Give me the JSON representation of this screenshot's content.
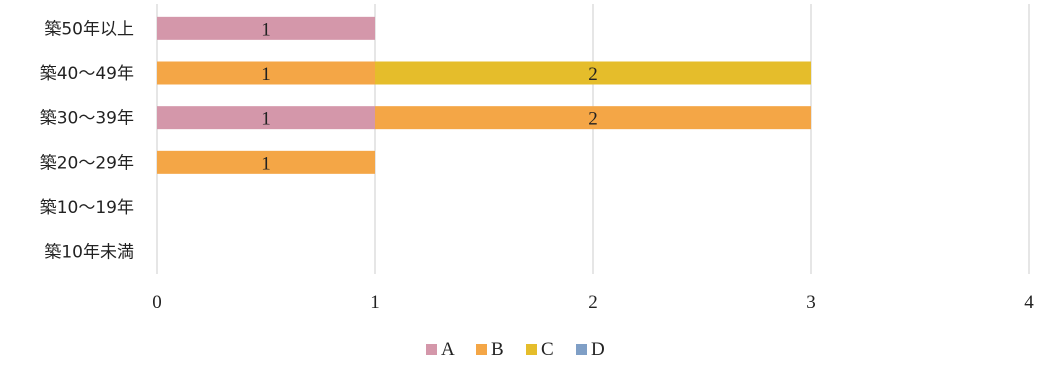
{
  "chart_data": {
    "type": "bar",
    "orientation": "horizontal",
    "stacked": true,
    "categories": [
      "築50年以上",
      "築40～49年",
      "築30～39年",
      "築20～29年",
      "築10～19年",
      "築10年未満"
    ],
    "series": [
      {
        "name": "A",
        "color": "#d497aa",
        "values": [
          1,
          0,
          1,
          0,
          0,
          0
        ]
      },
      {
        "name": "B",
        "color": "#f4a646",
        "values": [
          0,
          1,
          2,
          1,
          0,
          0
        ]
      },
      {
        "name": "C",
        "color": "#e5bd2b",
        "values": [
          0,
          2,
          0,
          0,
          0,
          0
        ]
      },
      {
        "name": "D",
        "color": "#7f9fc6",
        "values": [
          0,
          0,
          0,
          0,
          0,
          0
        ]
      }
    ],
    "xlim": [
      0,
      4
    ],
    "xticks": [
      "0",
      "1",
      "2",
      "3",
      "4"
    ],
    "grid": true,
    "data_labels": true,
    "legend": "bottom"
  }
}
